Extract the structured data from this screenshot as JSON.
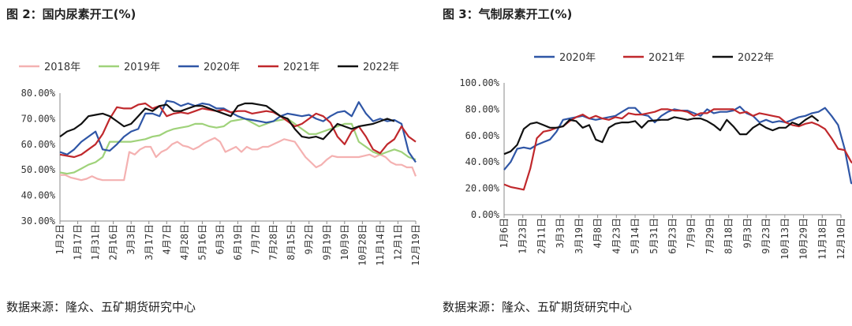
{
  "colors": {
    "2018": "#f4b1b1",
    "2019": "#9fd27a",
    "2020": "#2f56a6",
    "2021": "#c0282c",
    "2022": "#111111"
  },
  "chart_data": [
    {
      "type": "line",
      "title": "图 2：国内尿素开工(%)",
      "source": "数据来源：隆众、五矿期货研究中心",
      "ylim": [
        30,
        80
      ],
      "y_ticks": [
        "30.00%",
        "40.00%",
        "50.00%",
        "60.00%",
        "70.00%",
        "80.00%"
      ],
      "x_ticks": [
        "1月2日",
        "1月17日",
        "1月31日",
        "2月16日",
        "3月3日",
        "3月17日",
        "4月7日",
        "4月28日",
        "5月16日",
        "6月3日",
        "6月19日",
        "7月7日",
        "7月28日",
        "8月15日",
        "9月2日",
        "9月19日",
        "10月9日",
        "10月28日",
        "11月14日",
        "12月1日",
        "12月19日"
      ],
      "legend_position": "top",
      "series": [
        {
          "name": "2018年",
          "color_key": "2018",
          "x": [
            0,
            0.3,
            0.6,
            0.9,
            1.2,
            1.5,
            1.8,
            2.1,
            2.4,
            2.7,
            3.0,
            3.3,
            3.6,
            3.9,
            4.2,
            4.5,
            4.8,
            5.1,
            5.4,
            5.7,
            6.0,
            6.3,
            6.6,
            6.9,
            7.2,
            7.5,
            7.8,
            8.1,
            8.4,
            8.7,
            9.0,
            9.3,
            9.6,
            9.9,
            10.2,
            10.5,
            10.8,
            11.1,
            11.4,
            11.7,
            12.0,
            12.3,
            12.6,
            12.9,
            13.2,
            13.5,
            13.8,
            14.1,
            14.4,
            14.7,
            15.0,
            15.3,
            15.6,
            15.9,
            16.2,
            16.5,
            16.8,
            17.1,
            17.4,
            17.7,
            18.0,
            18.3,
            18.6,
            18.9,
            19.2,
            19.5,
            19.8,
            20.0
          ],
          "values": [
            48,
            48,
            47,
            46.5,
            46,
            46.5,
            47.5,
            46.5,
            46,
            46,
            46,
            46,
            46,
            57,
            56,
            58,
            59,
            59,
            55,
            57,
            58,
            60,
            61,
            59.5,
            59,
            58,
            59,
            60.5,
            61.5,
            62.5,
            61,
            57,
            58,
            59,
            57,
            59,
            58,
            58,
            59,
            59,
            60,
            61,
            62,
            61.5,
            61,
            58,
            55,
            53,
            51,
            52,
            54,
            55.5,
            55,
            55,
            55,
            55,
            55,
            55.5,
            56,
            55,
            56,
            55,
            53,
            52,
            52,
            51,
            51,
            47.5
          ]
        },
        {
          "name": "2019年",
          "color_key": "2019",
          "x": [
            0,
            0.4,
            0.8,
            1.2,
            1.6,
            2.0,
            2.4,
            2.8,
            3.2,
            3.6,
            4.0,
            4.4,
            4.8,
            5.2,
            5.6,
            6.0,
            6.4,
            6.8,
            7.2,
            7.6,
            8.0,
            8.4,
            8.8,
            9.2,
            9.6,
            10.0,
            10.4,
            10.8,
            11.2,
            11.6,
            12.0,
            12.4,
            12.8,
            13.2,
            13.6,
            14.0,
            14.4,
            14.8,
            15.2,
            15.6,
            16.0,
            16.4,
            16.8,
            17.2,
            17.6,
            18.0,
            18.4,
            18.8,
            19.2,
            19.6,
            20.0
          ],
          "values": [
            49,
            48.5,
            49,
            50.5,
            52,
            53,
            55,
            61,
            61,
            61,
            61,
            61.5,
            62,
            63,
            63.5,
            65,
            66,
            66.5,
            67,
            68,
            68,
            67,
            66.5,
            67,
            69,
            69.5,
            70,
            68.5,
            67,
            68,
            69,
            69.5,
            70,
            68,
            66,
            64,
            64,
            65,
            66,
            67,
            68,
            68,
            61,
            59,
            57,
            56,
            57,
            58,
            57,
            55,
            54
          ]
        },
        {
          "name": "2020年",
          "color_key": "2020",
          "x": [
            0,
            0.4,
            0.8,
            1.2,
            1.6,
            2.0,
            2.4,
            2.8,
            3.2,
            3.6,
            4.0,
            4.4,
            4.8,
            5.2,
            5.6,
            6.0,
            6.4,
            6.8,
            7.2,
            7.6,
            8.0,
            8.4,
            8.8,
            9.2,
            9.6,
            10.0,
            10.4,
            10.8,
            11.2,
            11.6,
            12.0,
            12.4,
            12.8,
            13.2,
            13.6,
            14.0,
            14.4,
            14.8,
            15.2,
            15.6,
            16.0,
            16.4,
            16.8,
            17.2,
            17.6,
            18.0,
            18.4,
            18.8,
            19.2,
            19.6,
            20.0
          ],
          "values": [
            57,
            56,
            58,
            61,
            63,
            65,
            58,
            57.5,
            60,
            63,
            65,
            66,
            72,
            72,
            71,
            77,
            76.5,
            75,
            76,
            75,
            76,
            75.5,
            74,
            74,
            72.5,
            71,
            70,
            69.5,
            69,
            68.5,
            69,
            71,
            72,
            71.5,
            71,
            71.5,
            70,
            69,
            71,
            72.5,
            73,
            71,
            76.5,
            72,
            69,
            70,
            69,
            69.5,
            68,
            57,
            53
          ]
        },
        {
          "name": "2021年",
          "color_key": "2021",
          "x": [
            0,
            0.4,
            0.8,
            1.2,
            1.6,
            2.0,
            2.4,
            2.8,
            3.2,
            3.6,
            4.0,
            4.4,
            4.8,
            5.2,
            5.6,
            6.0,
            6.4,
            6.8,
            7.2,
            7.6,
            8.0,
            8.4,
            8.8,
            9.2,
            9.6,
            10.0,
            10.4,
            10.8,
            11.2,
            11.6,
            12.0,
            12.4,
            12.8,
            13.2,
            13.6,
            14.0,
            14.4,
            14.8,
            15.2,
            15.6,
            16.0,
            16.4,
            16.8,
            17.2,
            17.6,
            18.0,
            18.4,
            18.8,
            19.2,
            19.6,
            20.0
          ],
          "values": [
            56,
            55.5,
            55,
            56,
            58,
            60,
            64,
            70,
            74.5,
            74,
            74,
            75.5,
            76,
            74,
            75,
            71,
            72,
            72.5,
            72,
            73,
            74,
            73.5,
            73,
            73.5,
            72.5,
            73,
            73,
            72,
            72.5,
            73,
            72.5,
            71,
            69,
            67,
            68,
            70,
            72,
            71,
            68.5,
            63,
            60,
            65,
            67,
            63,
            58,
            56.5,
            60,
            62,
            67,
            63,
            61
          ]
        },
        {
          "name": "2022年",
          "color_key": "2022",
          "x": [
            0,
            0.4,
            0.8,
            1.2,
            1.6,
            2.0,
            2.4,
            2.8,
            3.2,
            3.6,
            4.0,
            4.4,
            4.8,
            5.2,
            5.6,
            6.0,
            6.4,
            6.8,
            7.2,
            7.6,
            8.0,
            8.4,
            8.8,
            9.2,
            9.6,
            10.0,
            10.4,
            10.8,
            11.2,
            11.6,
            12.0,
            12.4,
            12.8,
            13.2,
            13.6,
            14.0,
            14.4,
            14.8,
            15.2,
            15.6,
            16.0,
            16.4,
            16.8,
            17.2,
            17.6,
            18.0,
            18.4,
            18.8
          ],
          "values": [
            63,
            65,
            66,
            68,
            71,
            71.5,
            72,
            71,
            69,
            67,
            68,
            71,
            74,
            73,
            75,
            75.5,
            73,
            73,
            74,
            75,
            75,
            74,
            73,
            72,
            71,
            75,
            76,
            76,
            75.5,
            75,
            73,
            71,
            70,
            66,
            63,
            62.5,
            63,
            62,
            65,
            68,
            67,
            66,
            67,
            67.5,
            68,
            69,
            70,
            69
          ]
        }
      ]
    },
    {
      "type": "line",
      "title": "图 3：气制尿素开工(%)",
      "source": "数据来源：隆众、五矿期货研究中心",
      "ylim": [
        0,
        100
      ],
      "y_ticks": [
        "0.00%",
        "20.00%",
        "40.00%",
        "60.00%",
        "80.00%",
        "100.00%"
      ],
      "x_ticks": [
        "1月6日",
        "1月23日",
        "2月11日",
        "3月3日",
        "3月19日",
        "4月8日",
        "4月23日",
        "5月14日",
        "5月31日",
        "6月23日",
        "7月9日",
        "7月29日",
        "8月18日",
        "9月3日",
        "9月23日",
        "10月13日",
        "10月29日",
        "11月18日",
        "12月10日"
      ],
      "legend_position": "top",
      "series": [
        {
          "name": "2020年",
          "color_key": "2020",
          "x": [
            0,
            0.35,
            0.7,
            1.05,
            1.4,
            1.75,
            2.1,
            2.45,
            2.8,
            3.15,
            3.5,
            3.85,
            4.2,
            4.55,
            4.9,
            5.25,
            5.6,
            5.95,
            6.3,
            6.65,
            7.0,
            7.35,
            7.7,
            8.05,
            8.4,
            8.75,
            9.1,
            9.45,
            9.8,
            10.15,
            10.5,
            10.85,
            11.2,
            11.55,
            11.9,
            12.25,
            12.6,
            12.95,
            13.3,
            13.65,
            14.0,
            14.35,
            14.7,
            15.05,
            15.4,
            15.75,
            16.1,
            16.45,
            16.8,
            17.15,
            17.5,
            17.85,
            18.2,
            18.55,
            18.9
          ],
          "values": [
            34,
            40,
            50,
            51,
            50,
            53,
            55,
            57,
            63,
            72,
            73,
            74,
            75,
            73,
            72,
            73,
            74,
            75,
            78,
            81,
            81,
            76,
            75,
            70,
            75,
            78,
            80,
            79,
            79,
            77,
            75,
            80,
            77,
            78,
            78,
            79,
            82,
            77,
            75,
            70,
            72,
            70,
            71,
            70,
            72,
            74,
            75,
            77,
            78,
            81,
            75,
            68,
            50,
            24,
            22
          ]
        },
        {
          "name": "2021年",
          "color_key": "2021",
          "x": [
            0,
            0.35,
            0.7,
            1.05,
            1.4,
            1.75,
            2.1,
            2.45,
            2.8,
            3.15,
            3.5,
            3.85,
            4.2,
            4.55,
            4.9,
            5.25,
            5.6,
            5.95,
            6.3,
            6.65,
            7.0,
            7.35,
            7.7,
            8.05,
            8.4,
            8.75,
            9.1,
            9.45,
            9.8,
            10.15,
            10.5,
            10.85,
            11.2,
            11.55,
            11.9,
            12.25,
            12.6,
            12.95,
            13.3,
            13.65,
            14.0,
            14.35,
            14.7,
            15.05,
            15.4,
            15.75,
            16.1,
            16.45,
            16.8,
            17.15,
            17.5,
            17.85,
            18.2,
            18.55,
            18.9
          ],
          "values": [
            23,
            21,
            20,
            19,
            35,
            58,
            63,
            64,
            66,
            67,
            71,
            74,
            76,
            73,
            75,
            73,
            72,
            74,
            73,
            77,
            76,
            76,
            77,
            78,
            80,
            80,
            79,
            79,
            78,
            75,
            77,
            77,
            80,
            80,
            80,
            80,
            77,
            78,
            75,
            77,
            76,
            75,
            74,
            70,
            68,
            67,
            69,
            70,
            68,
            65,
            58,
            50,
            49,
            40,
            36
          ]
        },
        {
          "name": "2022年",
          "color_key": "2022",
          "x": [
            0,
            0.35,
            0.7,
            1.05,
            1.4,
            1.75,
            2.1,
            2.45,
            2.8,
            3.15,
            3.5,
            3.85,
            4.2,
            4.55,
            4.9,
            5.25,
            5.6,
            5.95,
            6.3,
            6.65,
            7.0,
            7.35,
            7.7,
            8.05,
            8.4,
            8.75,
            9.1,
            9.45,
            9.8,
            10.15,
            10.5,
            10.85,
            11.2,
            11.55,
            11.9,
            12.25,
            12.6,
            12.95,
            13.3,
            13.65,
            14.0,
            14.35,
            14.7,
            15.05,
            15.4,
            15.75,
            16.1,
            16.45,
            16.8
          ],
          "values": [
            46,
            48,
            53,
            65,
            69,
            70,
            68,
            66,
            66,
            67,
            72,
            71,
            66,
            68,
            57,
            55,
            66,
            69,
            70,
            70,
            71,
            66,
            71,
            71.5,
            72,
            72,
            74,
            73,
            72,
            73,
            73,
            71,
            68,
            64,
            72,
            67,
            61,
            61,
            66,
            69,
            66,
            64,
            66,
            66,
            70,
            68,
            72,
            75,
            71
          ]
        }
      ]
    }
  ]
}
